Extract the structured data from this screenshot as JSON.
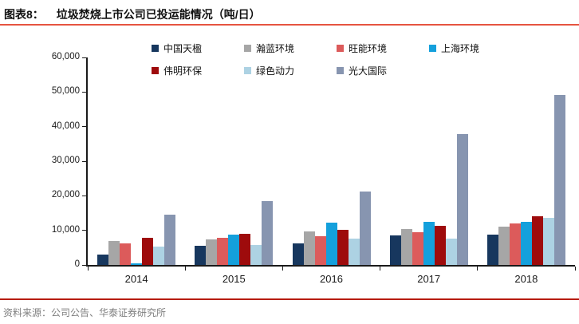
{
  "header": {
    "figure_label": "图表8：",
    "title": "垃圾焚烧上市公司已投运能情况（吨/日）"
  },
  "footer": {
    "source": "资料来源：公司公告、华泰证券研究所"
  },
  "colors": {
    "title_underline": "#E65440",
    "footer_divider": "#B71C0C",
    "axis": "#1a1a1a",
    "footer_text": "#7F7F7F"
  },
  "chart_data": {
    "type": "bar",
    "title": "垃圾焚烧上市公司已投运能情况（吨/日）",
    "xlabel": "",
    "ylabel": "",
    "categories": [
      "2014",
      "2015",
      "2016",
      "2017",
      "2018"
    ],
    "series": [
      {
        "name": "中国天楹",
        "color": "#17375E",
        "values": [
          3000,
          5500,
          6300,
          8500,
          8800
        ]
      },
      {
        "name": "瀚蓝环境",
        "color": "#A6A6A6",
        "values": [
          6900,
          7300,
          9800,
          10400,
          11000
        ]
      },
      {
        "name": "旺能环境",
        "color": "#DC5B5B",
        "values": [
          6200,
          7800,
          8300,
          9400,
          11900
        ]
      },
      {
        "name": "上海环境",
        "color": "#14A0DC",
        "values": [
          400,
          8700,
          12200,
          12400,
          12500
        ]
      },
      {
        "name": "伟明环保",
        "color": "#9E0B0C",
        "values": [
          7900,
          9000,
          10200,
          11200,
          14000
        ]
      },
      {
        "name": "绿色动力",
        "color": "#ADD2E3",
        "values": [
          5200,
          5800,
          7600,
          7700,
          13600
        ]
      },
      {
        "name": "光大国际",
        "color": "#8795B0",
        "values": [
          14500,
          18500,
          21300,
          37800,
          49100
        ]
      }
    ],
    "ylim": [
      0,
      60000
    ],
    "ytick_interval": 10000,
    "ytick_labels": [
      "0",
      "10,000",
      "20,000",
      "30,000",
      "40,000",
      "50,000",
      "60,000"
    ],
    "grid": false,
    "legend_position": "top",
    "legend_rows": [
      4,
      3
    ]
  }
}
